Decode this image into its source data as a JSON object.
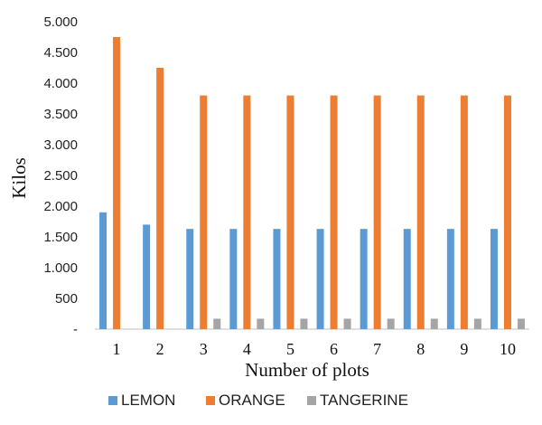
{
  "chart_data": {
    "type": "bar",
    "title": "",
    "xlabel": "Number of plots",
    "ylabel": "Kilos",
    "ylim": [
      0,
      5000
    ],
    "y_tick_labels": [
      "-",
      "500",
      "1.000",
      "1.500",
      "2.000",
      "2.500",
      "3.000",
      "3.500",
      "4.000",
      "4.500",
      "5.000"
    ],
    "categories": [
      "1",
      "2",
      "3",
      "4",
      "5",
      "6",
      "7",
      "8",
      "9",
      "10"
    ],
    "legend_position": "bottom",
    "grid": false,
    "series": [
      {
        "name": "LEMON",
        "color": "#5b9bd5",
        "values": [
          1900,
          1700,
          1630,
          1630,
          1630,
          1630,
          1630,
          1630,
          1630,
          1630
        ]
      },
      {
        "name": "ORANGE",
        "color": "#ed7d31",
        "values": [
          4750,
          4250,
          3800,
          3800,
          3800,
          3800,
          3800,
          3800,
          3800,
          3800
        ]
      },
      {
        "name": "TANGERINE",
        "color": "#a5a5a5",
        "values": [
          0,
          0,
          170,
          170,
          170,
          170,
          170,
          170,
          170,
          170
        ]
      }
    ]
  }
}
